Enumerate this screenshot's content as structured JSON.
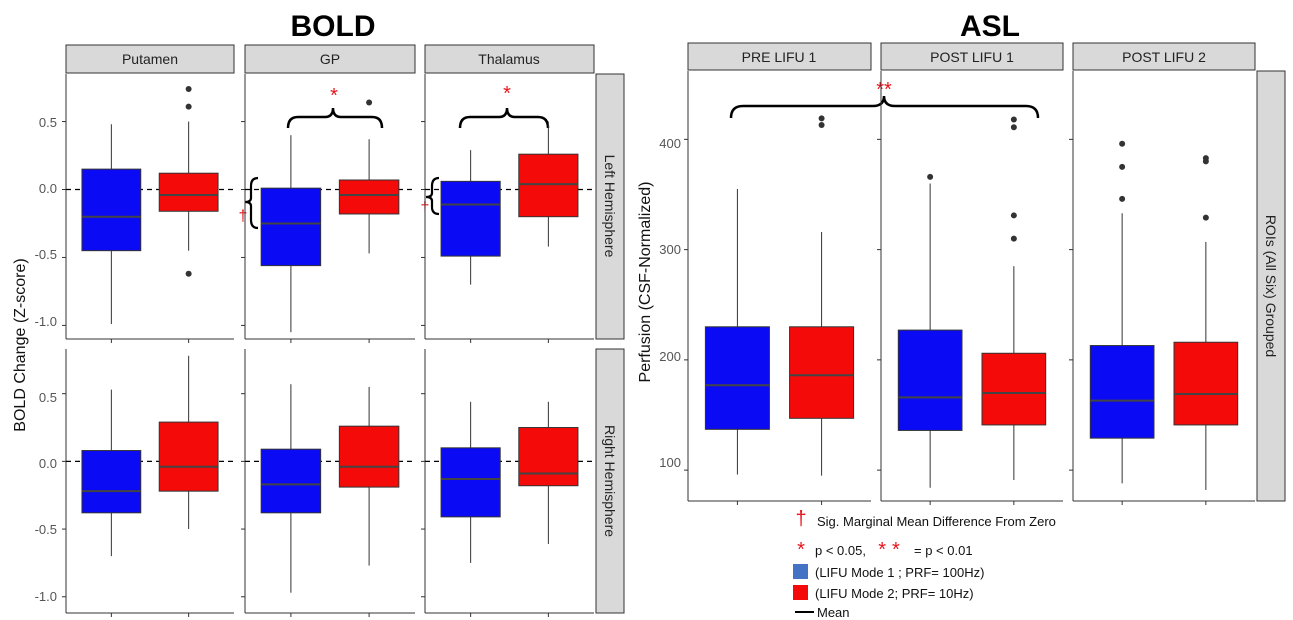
{
  "chart_data": [
    {
      "title": "BOLD",
      "type": "box",
      "ylabel": "BOLD Change (Z-score)",
      "ylim_top": [
        -1.1,
        0.85
      ],
      "ylim_bottom": [
        -1.12,
        0.83
      ],
      "yticks": [
        -1.0,
        -0.5,
        0.0,
        0.5
      ],
      "ytick_labels": [
        "-1.0",
        "-0.5",
        "0.0",
        "0.5"
      ],
      "columns": [
        "Putamen",
        "GP",
        "Thalamus"
      ],
      "rows": [
        "Left Hemisphere",
        "Right Hemisphere"
      ],
      "reference_line": 0,
      "panels": [
        {
          "row": 0,
          "col": 0,
          "boxes": [
            {
              "group": "LIFU Mode 1",
              "wlo": -0.99,
              "q1": -0.45,
              "med": -0.2,
              "q3": 0.15,
              "whi": 0.48,
              "outliers": []
            },
            {
              "group": "LIFU Mode 2",
              "wlo": -0.45,
              "q1": -0.16,
              "med": -0.04,
              "q3": 0.12,
              "whi": 0.5,
              "outliers": [
                0.74,
                0.61,
                -0.62
              ]
            }
          ]
        },
        {
          "row": 0,
          "col": 1,
          "boxes": [
            {
              "group": "LIFU Mode 1",
              "wlo": -1.05,
              "q1": -0.56,
              "med": -0.25,
              "q3": 0.01,
              "whi": 0.4,
              "outliers": []
            },
            {
              "group": "LIFU Mode 2",
              "wlo": -0.47,
              "q1": -0.18,
              "med": -0.04,
              "q3": 0.07,
              "whi": 0.37,
              "outliers": [
                0.64
              ]
            }
          ]
        },
        {
          "row": 0,
          "col": 2,
          "boxes": [
            {
              "group": "LIFU Mode 1",
              "wlo": -0.7,
              "q1": -0.49,
              "med": -0.11,
              "q3": 0.06,
              "whi": 0.29,
              "outliers": []
            },
            {
              "group": "LIFU Mode 2",
              "wlo": -0.42,
              "q1": -0.2,
              "med": 0.04,
              "q3": 0.26,
              "whi": 0.5,
              "outliers": []
            }
          ]
        },
        {
          "row": 1,
          "col": 0,
          "boxes": [
            {
              "group": "LIFU Mode 1",
              "wlo": -0.7,
              "q1": -0.38,
              "med": -0.22,
              "q3": 0.08,
              "whi": 0.53,
              "outliers": []
            },
            {
              "group": "LIFU Mode 2",
              "wlo": -0.5,
              "q1": -0.22,
              "med": -0.04,
              "q3": 0.29,
              "whi": 0.78,
              "outliers": []
            }
          ]
        },
        {
          "row": 1,
          "col": 1,
          "boxes": [
            {
              "group": "LIFU Mode 1",
              "wlo": -0.97,
              "q1": -0.38,
              "med": -0.17,
              "q3": 0.09,
              "whi": 0.57,
              "outliers": []
            },
            {
              "group": "LIFU Mode 2",
              "wlo": -0.77,
              "q1": -0.19,
              "med": -0.04,
              "q3": 0.26,
              "whi": 0.55,
              "outliers": []
            }
          ]
        },
        {
          "row": 1,
          "col": 2,
          "boxes": [
            {
              "group": "LIFU Mode 1",
              "wlo": -0.75,
              "q1": -0.41,
              "med": -0.13,
              "q3": 0.1,
              "whi": 0.44,
              "outliers": []
            },
            {
              "group": "LIFU Mode 2",
              "wlo": -0.61,
              "q1": -0.18,
              "med": -0.09,
              "q3": 0.25,
              "whi": 0.44,
              "outliers": []
            }
          ]
        }
      ]
    },
    {
      "title": "ASL",
      "type": "box",
      "ylabel": "Perfusion (CSF-Normalized)",
      "ylim": [
        72,
        462
      ],
      "yticks": [
        100,
        200,
        300,
        400
      ],
      "ytick_labels": [
        "100",
        "200",
        "300",
        "400"
      ],
      "columns": [
        "PRE LIFU 1",
        "POST LIFU 1",
        "POST LIFU 2"
      ],
      "rows": [
        "ROIs (All Six) Grouped"
      ],
      "panels": [
        {
          "row": 0,
          "col": 0,
          "boxes": [
            {
              "group": "LIFU Mode 1",
              "wlo": 96,
              "q1": 137,
              "med": 177,
              "q3": 230,
              "whi": 355,
              "outliers": []
            },
            {
              "group": "LIFU Mode 2",
              "wlo": 95,
              "q1": 147,
              "med": 186,
              "q3": 230,
              "whi": 316,
              "outliers": [
                419,
                413
              ]
            }
          ]
        },
        {
          "row": 0,
          "col": 1,
          "boxes": [
            {
              "group": "LIFU Mode 1",
              "wlo": 84,
              "q1": 136,
              "med": 166,
              "q3": 227,
              "whi": 360,
              "outliers": [
                366
              ]
            },
            {
              "group": "LIFU Mode 2",
              "wlo": 91,
              "q1": 141,
              "med": 170,
              "q3": 206,
              "whi": 285,
              "outliers": [
                418,
                411,
                331,
                310
              ]
            }
          ]
        },
        {
          "row": 0,
          "col": 2,
          "boxes": [
            {
              "group": "LIFU Mode 1",
              "wlo": 88,
              "q1": 129,
              "med": 163,
              "q3": 213,
              "whi": 333,
              "outliers": [
                396,
                375,
                346
              ]
            },
            {
              "group": "LIFU Mode 2",
              "wlo": 82,
              "q1": 141,
              "med": 169,
              "q3": 216,
              "whi": 307,
              "outliers": [
                383,
                380,
                329
              ]
            }
          ]
        }
      ]
    }
  ],
  "significance": {
    "single": "*",
    "double": "**",
    "dagger": "†"
  },
  "colors": {
    "mode1": "#0a0af5",
    "mode2": "#f50a0a",
    "strip_bg": "#d9d9d9",
    "sig": "#e8141a",
    "legend_mode1": "#4472c4",
    "legend_mode2": "#f50a0a"
  },
  "legend": {
    "dagger_label": "Sig. Marginal Mean Difference From Zero",
    "p_part1": "p < 0.05,",
    "p_part2": "= p < 0.01",
    "mode1_label": "(LIFU Mode 1 ; PRF= 100Hz)",
    "mode2_label": "(LIFU Mode 2; PRF= 10Hz)",
    "mean_label": "Mean"
  }
}
